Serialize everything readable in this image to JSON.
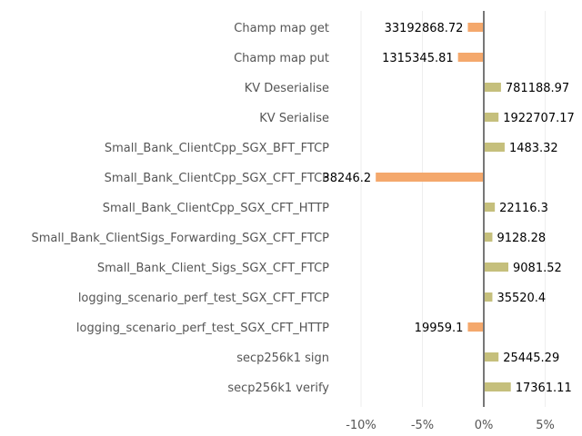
{
  "chart_data": {
    "type": "bar",
    "orientation": "horizontal",
    "title": "",
    "xlabel": "",
    "ylabel": "",
    "xlim": [
      -12,
      8
    ],
    "x_ticks": [
      -10,
      -5,
      0,
      5
    ],
    "x_tick_labels": [
      "-10%",
      "-5%",
      "0%",
      "5%"
    ],
    "grid": "vertical",
    "colors": {
      "positive": "#c5bf7c",
      "negative": "#f4a86c",
      "zero_line": "#777777"
    },
    "categories": [
      "Champ map get",
      "Champ map put",
      "KV Deserialise",
      "KV Serialise",
      "Small_Bank_ClientCpp_SGX_BFT_FTCP",
      "Small_Bank_ClientCpp_SGX_CFT_FTCP",
      "Small_Bank_ClientCpp_SGX_CFT_HTTP",
      "Small_Bank_ClientSigs_Forwarding_SGX_CFT_FTCP",
      "Small_Bank_Client_Sigs_SGX_CFT_FTCP",
      "logging_scenario_perf_test_SGX_CFT_FTCP",
      "logging_scenario_perf_test_SGX_CFT_HTTP",
      "secp256k1 sign",
      "secp256k1 verify"
    ],
    "values": [
      -1.3,
      -2.1,
      1.4,
      1.2,
      1.7,
      -8.8,
      0.9,
      0.7,
      2.0,
      0.7,
      -1.3,
      1.2,
      2.2
    ],
    "value_labels": [
      "33192868.72",
      "1315345.81",
      "781188.97",
      "1922707.17",
      "1483.32",
      "38246.2",
      "22116.3",
      "9128.28",
      "9081.52",
      "35520.4",
      "19959.1",
      "25445.29",
      "17361.11"
    ]
  }
}
